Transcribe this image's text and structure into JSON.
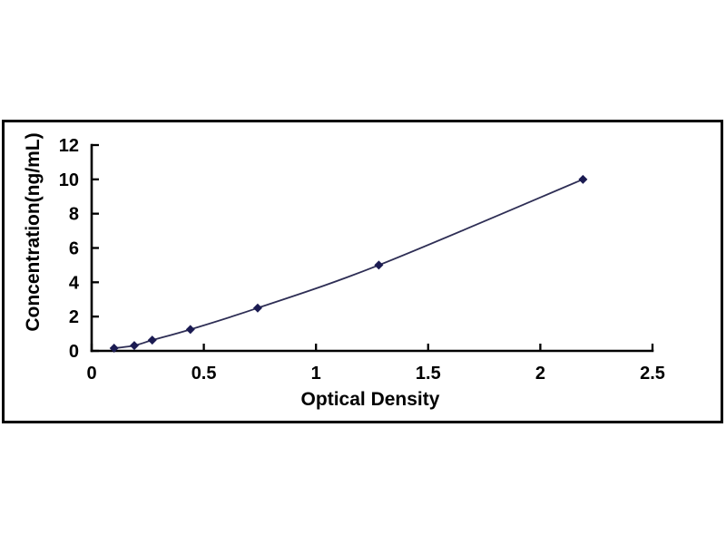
{
  "page": {
    "background_color": "#ffffff"
  },
  "chart": {
    "frame_border_color": "#000000",
    "x_title": "Optical Density",
    "y_title": "Concentration(ng/mL)"
  },
  "chart_data": {
    "type": "line",
    "title": "",
    "xlabel": "Optical Density",
    "ylabel": "Concentration(ng/mL)",
    "x": [
      0.1,
      0.19,
      0.27,
      0.44,
      0.74,
      1.28,
      2.19
    ],
    "y": [
      0.156,
      0.312,
      0.625,
      1.25,
      2.5,
      5,
      10
    ],
    "xlim": [
      0,
      2.5
    ],
    "ylim": [
      0,
      12
    ],
    "xticks": [
      0,
      0.5,
      1,
      1.5,
      2,
      2.5
    ],
    "xtick_labels": [
      "0",
      "0.5",
      "1",
      "1.5",
      "2",
      "2.5"
    ],
    "yticks": [
      0,
      2,
      4,
      6,
      8,
      10,
      12
    ],
    "ytick_labels": [
      "0",
      "2",
      "4",
      "6",
      "8",
      "10",
      "12"
    ],
    "grid": false,
    "legend": "none",
    "marker": "diamond",
    "marker_size": 5,
    "line_color": "#2e2e55",
    "marker_color": "#1b1b52",
    "axis_color": "#000000",
    "tick_label_color": "#000000"
  }
}
